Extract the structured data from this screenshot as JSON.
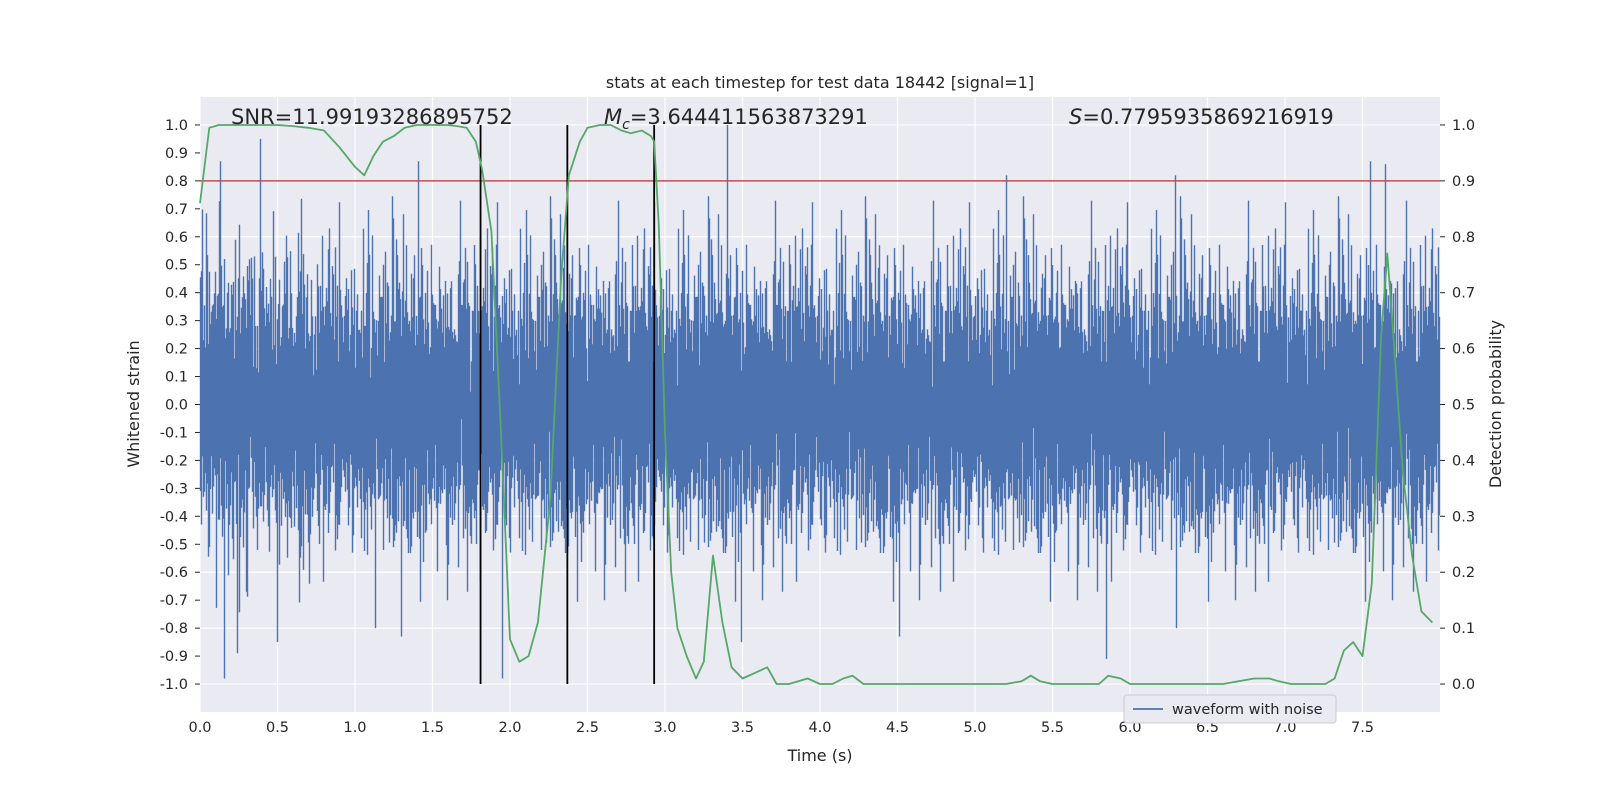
{
  "chart_data": {
    "type": "line",
    "title": "stats at each timestep for test data 18442 [signal=1]",
    "xlabel": "Time (s)",
    "ylabel": "Whitened strain",
    "y2label": "Detection probability",
    "xlim": [
      0.0,
      8.0
    ],
    "ylim": [
      -1.1,
      1.1
    ],
    "y2lim": [
      -0.05,
      1.05
    ],
    "x_ticks": [
      0.0,
      0.5,
      1.0,
      1.5,
      2.0,
      2.5,
      3.0,
      3.5,
      4.0,
      4.5,
      5.0,
      5.5,
      6.0,
      6.5,
      7.0,
      7.5
    ],
    "x_tick_labels": [
      "0.0",
      "0.5",
      "1.0",
      "1.5",
      "2.0",
      "2.5",
      "3.0",
      "3.5",
      "4.0",
      "4.5",
      "5.0",
      "5.5",
      "6.0",
      "6.5",
      "7.0",
      "7.5"
    ],
    "y_ticks": [
      1.0,
      0.9,
      0.8,
      0.7,
      0.6,
      0.5,
      0.4,
      0.3,
      0.2,
      0.1,
      0.0,
      -0.1,
      -0.2,
      -0.3,
      -0.4,
      -0.5,
      -0.6,
      -0.7,
      -0.8,
      -0.9,
      -1.0
    ],
    "y_tick_labels": [
      "1.0",
      "0.9",
      "0.8",
      "0.7",
      "0.6",
      "0.5",
      "0.4",
      "0.3",
      "0.2",
      "0.1",
      "0.0",
      "-0.1",
      "-0.2",
      "-0.3",
      "-0.4",
      "-0.5",
      "-0.6",
      "-0.7",
      "-0.8",
      "-0.9",
      "-1.0"
    ],
    "y2_ticks": [
      1.0,
      0.9,
      0.8,
      0.7,
      0.6,
      0.5,
      0.4,
      0.3,
      0.2,
      0.1,
      0.0
    ],
    "y2_tick_labels": [
      "1.0",
      "0.9",
      "0.8",
      "0.7",
      "0.6",
      "0.5",
      "0.4",
      "0.3",
      "0.2",
      "0.1",
      "0.0"
    ],
    "grid": true,
    "annotations": {
      "snr": "SNR=11.99193286895752",
      "mc_symbol": "M",
      "mc_sub": "c",
      "mc_value": "=3.644411563873291",
      "s_symbol": "S",
      "s_value": "=0.7795935869216919"
    },
    "threshold": {
      "y2": 0.9,
      "color": "#c44e52"
    },
    "vertical_lines_x": [
      1.81,
      2.37,
      2.93
    ],
    "legend": {
      "entries": [
        "waveform with noise"
      ],
      "placement": "lower-right"
    },
    "waveform": {
      "name": "waveform with noise",
      "color": "#4c72b0",
      "t_start": 0.0,
      "t_end": 8.0,
      "sample_rate_hz": 2048,
      "band_peak": 0.39,
      "extreme_peaks": [
        {
          "t": 0.13,
          "v": 0.87
        },
        {
          "t": 0.16,
          "v": -0.98
        },
        {
          "t": 0.24,
          "v": -0.89
        },
        {
          "t": 0.39,
          "v": 0.95
        },
        {
          "t": 0.5,
          "v": -0.85
        },
        {
          "t": 1.13,
          "v": -0.8
        },
        {
          "t": 1.3,
          "v": -0.83
        },
        {
          "t": 1.41,
          "v": 0.87
        },
        {
          "t": 1.95,
          "v": -0.98
        },
        {
          "t": 3.4,
          "v": 1.0
        },
        {
          "t": 3.49,
          "v": -0.85
        },
        {
          "t": 4.51,
          "v": -0.83
        },
        {
          "t": 5.2,
          "v": 0.82
        },
        {
          "t": 5.85,
          "v": -0.91
        },
        {
          "t": 6.29,
          "v": 0.82
        },
        {
          "t": 6.3,
          "v": -0.8
        },
        {
          "t": 7.55,
          "v": 0.87
        },
        {
          "t": 7.65,
          "v": 0.86
        }
      ]
    },
    "probability": {
      "name": "detection probability",
      "color": "#55a868",
      "x": [
        0.0,
        0.06,
        0.12,
        0.2,
        0.3,
        0.4,
        0.5,
        0.6,
        0.7,
        0.8,
        0.9,
        1.0,
        1.06,
        1.12,
        1.18,
        1.25,
        1.32,
        1.4,
        1.5,
        1.6,
        1.66,
        1.72,
        1.78,
        1.82,
        1.88,
        1.94,
        2.0,
        2.06,
        2.12,
        2.18,
        2.26,
        2.33,
        2.38,
        2.45,
        2.5,
        2.58,
        2.65,
        2.72,
        2.78,
        2.85,
        2.91,
        2.93,
        2.96,
        3.0,
        3.04,
        3.08,
        3.14,
        3.2,
        3.25,
        3.31,
        3.37,
        3.43,
        3.5,
        3.58,
        3.66,
        3.72,
        3.8,
        3.86,
        3.92,
        4.0,
        4.08,
        4.15,
        4.21,
        4.28,
        4.4,
        4.5,
        4.6,
        4.7,
        4.8,
        4.9,
        5.0,
        5.1,
        5.2,
        5.3,
        5.36,
        5.42,
        5.5,
        5.6,
        5.7,
        5.8,
        5.86,
        5.94,
        6.0,
        6.06,
        6.12,
        6.2,
        6.3,
        6.4,
        6.5,
        6.6,
        6.7,
        6.8,
        6.9,
        6.96,
        7.04,
        7.1,
        7.2,
        7.26,
        7.32,
        7.38,
        7.44,
        7.5,
        7.56,
        7.62,
        7.66,
        7.7,
        7.76,
        7.82,
        7.88,
        7.95
      ],
      "y": [
        0.86,
        0.995,
        1.0,
        1.0,
        1.0,
        1.0,
        1.0,
        0.998,
        0.995,
        0.99,
        0.96,
        0.925,
        0.91,
        0.945,
        0.97,
        0.98,
        0.995,
        1.0,
        1.0,
        1.0,
        0.998,
        0.995,
        0.97,
        0.92,
        0.81,
        0.46,
        0.08,
        0.04,
        0.05,
        0.11,
        0.33,
        0.73,
        0.91,
        0.97,
        0.995,
        1.0,
        1.0,
        0.99,
        0.985,
        0.99,
        0.98,
        0.97,
        0.82,
        0.45,
        0.2,
        0.1,
        0.05,
        0.01,
        0.04,
        0.23,
        0.11,
        0.03,
        0.01,
        0.02,
        0.03,
        0.0,
        0.0,
        0.005,
        0.01,
        0.0,
        0.0,
        0.01,
        0.015,
        0.0,
        0.0,
        0.0,
        0.0,
        0.0,
        0.0,
        0.0,
        0.0,
        0.0,
        0.0,
        0.005,
        0.015,
        0.005,
        0.0,
        0.0,
        0.0,
        0.0,
        0.015,
        0.01,
        0.0,
        0.0,
        0.0,
        0.0,
        0.0,
        0.0,
        0.0,
        0.0,
        0.005,
        0.01,
        0.01,
        0.005,
        0.0,
        0.0,
        0.0,
        0.0,
        0.01,
        0.06,
        0.075,
        0.05,
        0.18,
        0.62,
        0.77,
        0.62,
        0.38,
        0.23,
        0.13,
        0.11
      ]
    }
  }
}
